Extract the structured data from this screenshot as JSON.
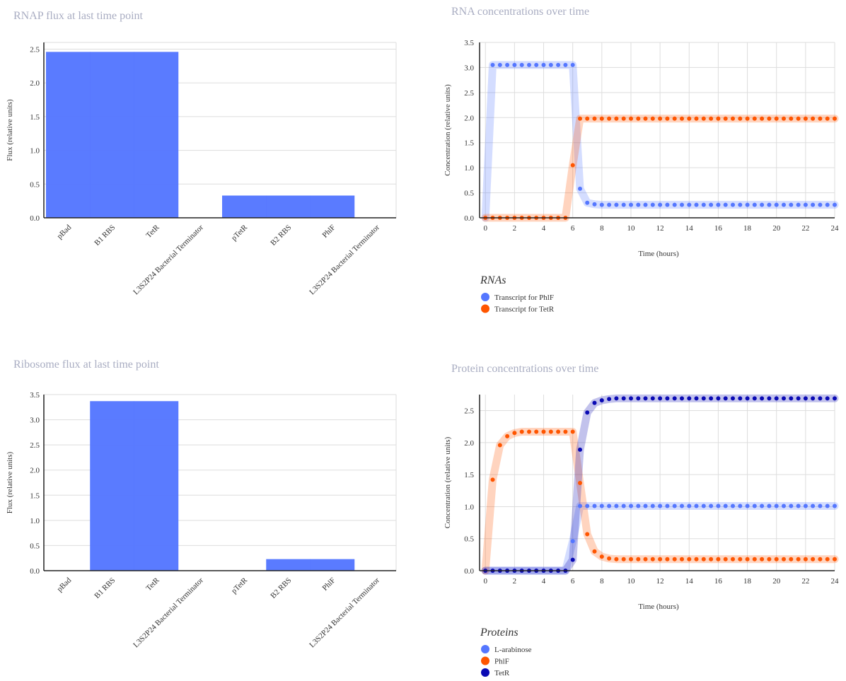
{
  "colors": {
    "blue": "#5577ff",
    "orange": "#ff5500",
    "navy": "#0a0ab4",
    "title": "#a9adc2"
  },
  "chart_data": [
    {
      "id": "rnap",
      "type": "bar",
      "title": "RNAP flux at last time point",
      "ylabel": "Flux (relative units)",
      "xlabel": "",
      "categories": [
        "pBad",
        "B1 RBS",
        "TetR",
        "L3S2P24 Bacterial Terminator",
        "pTetR",
        "B2 RBS",
        "PhlF",
        "L3S2P24 Bacterial Terminator"
      ],
      "values": [
        2.46,
        2.46,
        2.46,
        0,
        0.33,
        0.33,
        0.33,
        0
      ],
      "ylim": [
        0,
        2.6
      ],
      "yticks": [
        "0.0",
        "0.5",
        "1.0",
        "1.5",
        "2.0",
        "2.5"
      ],
      "grid": true
    },
    {
      "id": "rna",
      "type": "line",
      "title": "RNA concentrations over time",
      "xlabel": "Time (hours)",
      "ylabel": "Concentration (relative units)",
      "xlim": [
        -0.4,
        24
      ],
      "ylim": [
        0,
        3.5
      ],
      "xticks": [
        "0",
        "2",
        "4",
        "6",
        "8",
        "10",
        "12",
        "14",
        "16",
        "18",
        "20",
        "22",
        "24"
      ],
      "yticks": [
        "0.0",
        "0.5",
        "1.0",
        "1.5",
        "2.0",
        "2.5",
        "3.0",
        "3.5"
      ],
      "grid": true,
      "legend_title": "RNAs",
      "series": [
        {
          "name": "Transcript for PhlF",
          "color": "#5577ff",
          "x": [
            0,
            0.5,
            6.0,
            6.5,
            7.0,
            7.5,
            8.0,
            24
          ],
          "y": [
            0,
            3.05,
            3.05,
            0.58,
            0.3,
            0.27,
            0.26,
            0.26
          ]
        },
        {
          "name": "Transcript for TetR",
          "color": "#ff5500",
          "x": [
            0,
            5.5,
            6.0,
            6.5,
            24
          ],
          "y": [
            0,
            0,
            1.05,
            1.98,
            1.98
          ]
        }
      ]
    },
    {
      "id": "ribosome",
      "type": "bar",
      "title": "Ribosome flux at last time point",
      "ylabel": "Flux (relative units)",
      "xlabel": "",
      "categories": [
        "pBad",
        "B1 RBS",
        "TetR",
        "L3S2P24 Bacterial Terminator",
        "pTetR",
        "B2 RBS",
        "PhlF",
        "L3S2P24 Bacterial Terminator"
      ],
      "values": [
        0,
        3.37,
        3.37,
        0,
        0,
        0.23,
        0.23,
        0
      ],
      "ylim": [
        0,
        3.5
      ],
      "yticks": [
        "0.0",
        "0.5",
        "1.0",
        "1.5",
        "2.0",
        "2.5",
        "3.0",
        "3.5"
      ],
      "grid": true
    },
    {
      "id": "protein",
      "type": "line",
      "title": "Protein concentrations over time",
      "xlabel": "Time (hours)",
      "ylabel": "Concentration (relative units)",
      "xlim": [
        -0.4,
        24
      ],
      "ylim": [
        0,
        2.75
      ],
      "xticks": [
        "0",
        "2",
        "4",
        "6",
        "8",
        "10",
        "12",
        "14",
        "16",
        "18",
        "20",
        "22",
        "24"
      ],
      "yticks": [
        "0.0",
        "0.5",
        "1.0",
        "1.5",
        "2.0",
        "2.5"
      ],
      "grid": true,
      "legend_title": "Proteins",
      "series": [
        {
          "name": "L-arabinose",
          "color": "#5577ff",
          "x": [
            0,
            5.5,
            6.0,
            6.5,
            24
          ],
          "y": [
            0,
            0,
            0.46,
            1.01,
            1.01
          ]
        },
        {
          "name": "PhlF",
          "color": "#ff5500",
          "x": [
            0,
            0.5,
            1.0,
            1.5,
            2.0,
            2.5,
            6.0,
            6.5,
            7.0,
            7.5,
            8.0,
            8.5,
            9.0,
            24
          ],
          "y": [
            0,
            1.42,
            1.96,
            2.1,
            2.15,
            2.17,
            2.17,
            1.37,
            0.57,
            0.3,
            0.22,
            0.19,
            0.18,
            0.18
          ]
        },
        {
          "name": "TetR",
          "color": "#0a0ab4",
          "x": [
            0,
            5.5,
            6.0,
            6.5,
            7.0,
            7.5,
            8.0,
            8.5,
            9.0,
            24
          ],
          "y": [
            0,
            0,
            0.17,
            1.89,
            2.47,
            2.62,
            2.66,
            2.68,
            2.69,
            2.69
          ]
        }
      ]
    }
  ]
}
